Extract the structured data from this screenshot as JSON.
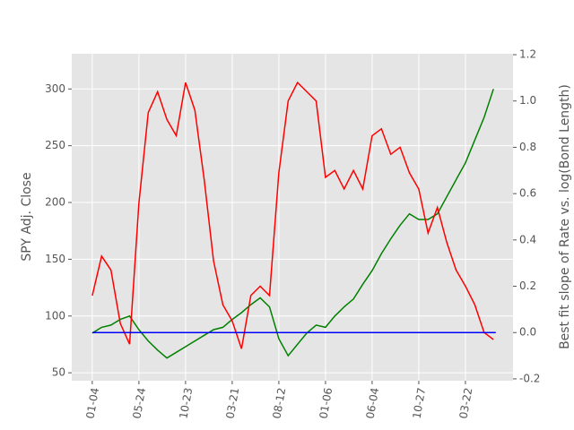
{
  "chart_data": {
    "type": "line",
    "y_label": "SPY Adj. Close",
    "y2_label": "Best fit slope of Rate vs. log(Bond Length)",
    "x": [
      0,
      20,
      40,
      60,
      80,
      100,
      120,
      140,
      160,
      180,
      200,
      220,
      240,
      260,
      280,
      300,
      320,
      340,
      360,
      380,
      400,
      420,
      440,
      460,
      480,
      500,
      520,
      540,
      560,
      580,
      600,
      620,
      640,
      660,
      680,
      700,
      720,
      740,
      760,
      780,
      800,
      820,
      840,
      860
    ],
    "xlim": [
      -44,
      902
    ],
    "xticks": [
      {
        "value": 0,
        "label": "01-04"
      },
      {
        "value": 100,
        "label": "05-24"
      },
      {
        "value": 200,
        "label": "10-23"
      },
      {
        "value": 300,
        "label": "03-21"
      },
      {
        "value": 400,
        "label": "08-12"
      },
      {
        "value": 500,
        "label": "01-06"
      },
      {
        "value": 600,
        "label": "06-04"
      },
      {
        "value": 700,
        "label": "10-27"
      },
      {
        "value": 800,
        "label": "03-22"
      }
    ],
    "ylim": [
      43,
      331
    ],
    "yticks": [
      50,
      100,
      150,
      200,
      250,
      300
    ],
    "y2lim": [
      -0.208,
      1.204
    ],
    "y2ticks": [
      -0.2,
      {
        "value": 0,
        "label": "0.0"
      },
      0.2,
      0.4,
      0.6,
      0.8,
      {
        "value": 1,
        "label": "1.0"
      },
      1.2
    ],
    "grid": true,
    "series": [
      {
        "color": "#008000",
        "values": [
          85,
          90,
          92,
          97,
          100,
          88,
          78,
          70,
          63,
          68,
          73,
          78,
          83,
          88,
          90,
          97,
          103,
          110,
          116,
          108,
          80,
          65,
          75,
          85,
          92,
          90,
          100,
          108,
          115,
          128,
          140,
          155,
          168,
          180,
          190,
          185,
          185,
          190,
          205,
          220,
          235,
          255,
          275,
          300
        ]
      },
      {
        "color": "#ff0000",
        "axis": "y2",
        "values": [
          0.16,
          0.33,
          0.27,
          0.04,
          -0.05,
          0.56,
          0.95,
          1.04,
          0.92,
          0.85,
          1.08,
          0.96,
          0.66,
          0.31,
          0.12,
          0.05,
          -0.07,
          0.16,
          0.2,
          0.16,
          0.69,
          1.0,
          1.08,
          1.04,
          1.0,
          0.67,
          0.7,
          0.62,
          0.7,
          0.62,
          0.85,
          0.88,
          0.77,
          0.8,
          0.69,
          0.62,
          0.43,
          0.54,
          0.39,
          0.27,
          0.2,
          0.12,
          0.0,
          -0.03
        ]
      },
      {
        "color": "#0000ff",
        "axis": "y2",
        "x": [
          0,
          865
        ],
        "values": [
          0,
          0
        ]
      }
    ]
  }
}
